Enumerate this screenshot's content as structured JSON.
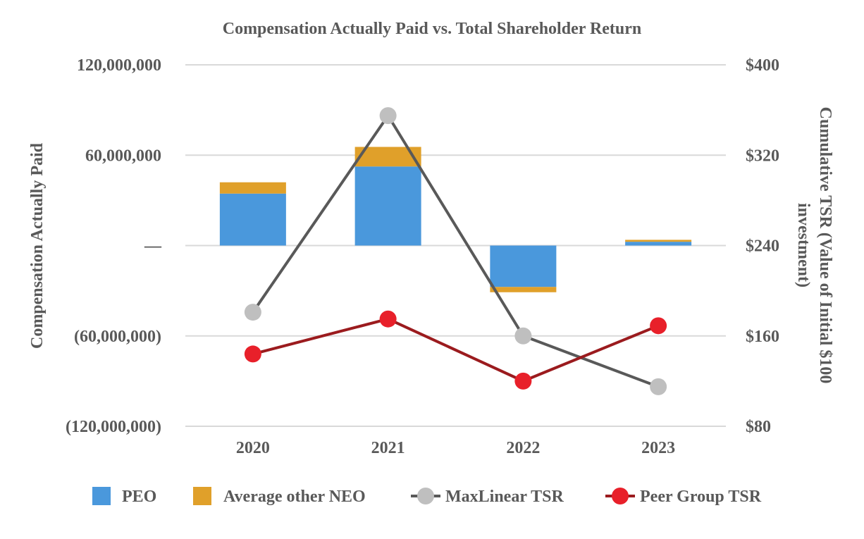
{
  "chart_data": {
    "type": "bar+line",
    "title": "Compensation Actually Paid vs. Total Shareholder Return",
    "categories": [
      "2020",
      "2021",
      "2022",
      "2023"
    ],
    "left_axis": {
      "title": "Compensation Actually Paid",
      "range": [
        -120000000,
        120000000
      ],
      "ticks": [
        120000000,
        60000000,
        0,
        -60000000,
        -120000000
      ],
      "tick_labels": [
        "120,000,000",
        "60,000,000",
        "—",
        "(60,000,000)",
        "(120,000,000)"
      ]
    },
    "right_axis": {
      "title_line1": "Cumulative TSR (Value of Initial $100",
      "title_line2": "investment)",
      "range": [
        80,
        400
      ],
      "ticks": [
        400,
        320,
        240,
        160,
        80
      ],
      "tick_labels": [
        "$400",
        "$320",
        "$240",
        "$160",
        "$80"
      ]
    },
    "bar_series": [
      {
        "name": "PEO",
        "color": "#4a98dc",
        "values": [
          34500000,
          52500000,
          -27500000,
          2500000
        ]
      },
      {
        "name": "Average other NEO",
        "color": "#e0a02a",
        "values": [
          7500000,
          13000000,
          -3500000,
          1300000
        ]
      }
    ],
    "line_series": [
      {
        "name": "MaxLinear TSR",
        "color": "#bfbfbf",
        "line_color": "#595959",
        "values": [
          181,
          355,
          160,
          115
        ]
      },
      {
        "name": "Peer Group TSR",
        "color": "#e8202a",
        "line_color": "#9b1b1e",
        "values": [
          144,
          175,
          120,
          169
        ]
      }
    ],
    "legend": [
      "PEO",
      "Average other NEO",
      "MaxLinear TSR",
      "Peer Group TSR"
    ],
    "legend_position": "bottom",
    "grid": true
  }
}
